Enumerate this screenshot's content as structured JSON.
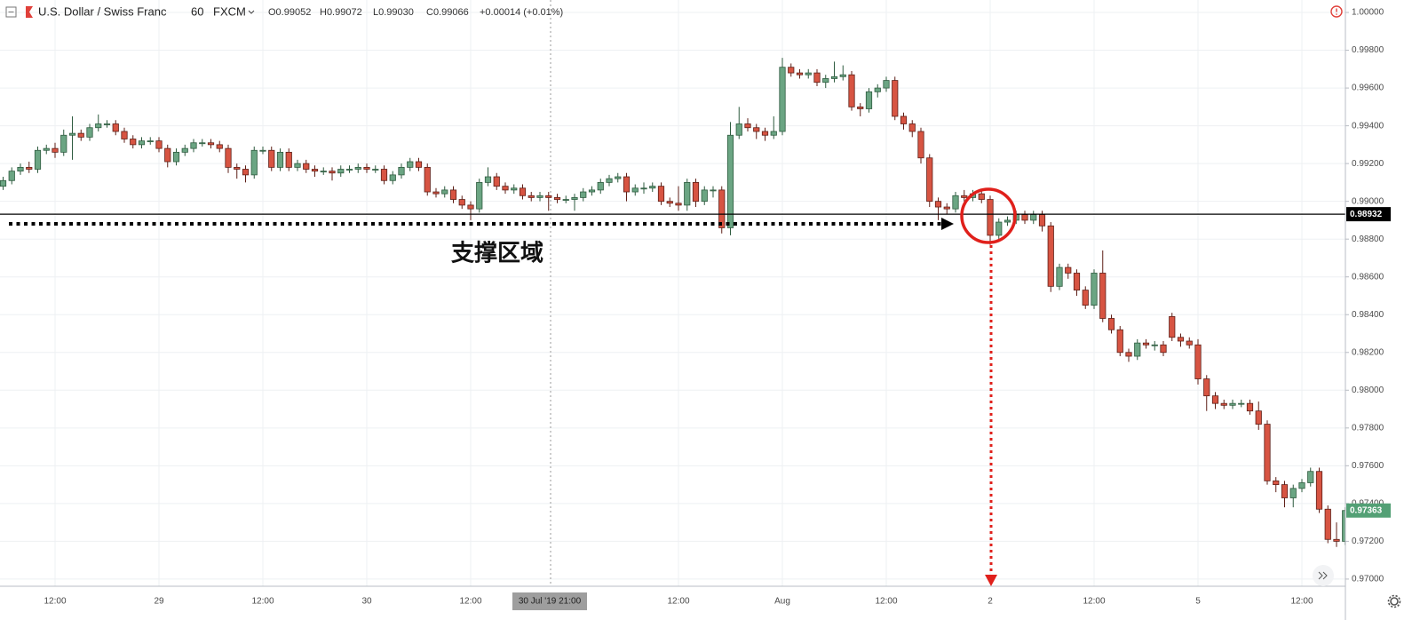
{
  "chart_data": {
    "type": "candlestick",
    "title": "U.S. Dollar / Swiss Franc",
    "interval": "60",
    "source": "FXCM",
    "ohlc_text": [
      "O0.99052",
      "H0.99072",
      "L0.99030",
      "C0.99066"
    ],
    "change_text": "+0.00014 (+0.01%)",
    "crosshair_label": "30 Jul '19  21:00",
    "annotation": "支撑区域",
    "up_color": "#6ba583",
    "down_color": "#d75442",
    "grid": true,
    "ylim": [
      0.96962,
      1.00066
    ],
    "yticks": [
      {
        "value": 1.0,
        "label": "1.00000"
      },
      {
        "value": 0.998,
        "label": "0.99800"
      },
      {
        "value": 0.996,
        "label": "0.99600"
      },
      {
        "value": 0.994,
        "label": "0.99400"
      },
      {
        "value": 0.992,
        "label": "0.99200"
      },
      {
        "value": 0.99,
        "label": "0.99000"
      },
      {
        "value": 0.988,
        "label": "0.98800"
      },
      {
        "value": 0.986,
        "label": "0.98600"
      },
      {
        "value": 0.984,
        "label": "0.98400"
      },
      {
        "value": 0.982,
        "label": "0.98200"
      },
      {
        "value": 0.98,
        "label": "0.98000"
      },
      {
        "value": 0.978,
        "label": "0.97800"
      },
      {
        "value": 0.976,
        "label": "0.97600"
      },
      {
        "value": 0.974,
        "label": "0.97400"
      },
      {
        "value": 0.972,
        "label": "0.97200"
      },
      {
        "value": 0.97,
        "label": "0.97000"
      }
    ],
    "price_lines": [
      {
        "value": 0.98932,
        "color": "#000000",
        "line": true
      },
      {
        "value": 0.97363,
        "color": "#53a075",
        "line": false
      }
    ],
    "categories": [
      null,
      null,
      null,
      null,
      null,
      null,
      "12:00",
      null,
      null,
      null,
      null,
      null,
      null,
      null,
      null,
      null,
      null,
      null,
      "29",
      null,
      null,
      null,
      null,
      null,
      null,
      null,
      null,
      null,
      null,
      null,
      "12:00",
      null,
      null,
      null,
      null,
      null,
      null,
      null,
      null,
      null,
      null,
      null,
      "30",
      null,
      null,
      null,
      null,
      null,
      null,
      null,
      null,
      null,
      null,
      null,
      "12:00",
      null,
      null,
      null,
      null,
      null,
      null,
      null,
      null,
      null,
      null,
      null,
      null,
      null,
      null,
      null,
      null,
      null,
      null,
      null,
      null,
      null,
      null,
      null,
      "12:00",
      null,
      null,
      null,
      null,
      null,
      null,
      null,
      null,
      null,
      null,
      null,
      "Aug",
      null,
      null,
      null,
      null,
      null,
      null,
      null,
      null,
      null,
      null,
      null,
      "12:00",
      null,
      null,
      null,
      null,
      null,
      null,
      null,
      null,
      null,
      null,
      null,
      "2",
      null,
      null,
      null,
      null,
      null,
      null,
      null,
      null,
      null,
      null,
      null,
      "12:00",
      null,
      null,
      null,
      null,
      null,
      null,
      null,
      null,
      null,
      null,
      null,
      "5",
      null,
      null,
      null,
      null,
      null,
      null,
      null,
      null,
      null,
      null,
      null,
      "12:00",
      null,
      null,
      null,
      null,
      null
    ],
    "open": [
      0.9908,
      0.9911,
      0.9916,
      0.9918,
      0.9917,
      0.9927,
      0.9928,
      0.9926,
      0.9935,
      0.9936,
      0.9934,
      0.9939,
      0.9941,
      0.9941,
      0.9937,
      0.9933,
      0.993,
      0.9932,
      0.9932,
      0.9928,
      0.9921,
      0.9926,
      0.9928,
      0.9931,
      0.9931,
      0.993,
      0.9928,
      0.9918,
      0.9917,
      0.9914,
      0.9927,
      0.9927,
      0.9918,
      0.9926,
      0.9918,
      0.992,
      0.9917,
      0.9916,
      0.9916,
      0.9915,
      0.9917,
      0.9917,
      0.9918,
      0.9917,
      0.9917,
      0.9911,
      0.9914,
      0.9918,
      0.9921,
      0.9918,
      0.9905,
      0.9904,
      0.9906,
      0.9901,
      0.9898,
      0.9896,
      0.991,
      0.9913,
      0.9908,
      0.9906,
      0.9907,
      0.9903,
      0.9902,
      0.9903,
      0.9902,
      0.9901,
      0.9901,
      0.9902,
      0.9905,
      0.9906,
      0.991,
      0.9912,
      0.9913,
      0.9905,
      0.9907,
      0.9907,
      0.9908,
      0.99,
      0.9899,
      0.9898,
      0.991,
      0.99,
      0.9906,
      0.9906,
      0.9886,
      0.9935,
      0.9941,
      0.9939,
      0.9937,
      0.9935,
      0.9937,
      0.9971,
      0.9968,
      0.9967,
      0.9968,
      0.9963,
      0.9965,
      0.9966,
      0.9967,
      0.995,
      0.9949,
      0.9958,
      0.996,
      0.9964,
      0.9945,
      0.9941,
      0.9937,
      0.9923,
      0.99,
      0.9897,
      0.9896,
      0.9903,
      0.9902,
      0.9904,
      0.9901,
      0.9882,
      0.9889,
      0.989,
      0.9893,
      0.989,
      0.9893,
      0.9887,
      0.9855,
      0.9865,
      0.9862,
      0.9853,
      0.9845,
      0.9862,
      0.9838,
      0.9832,
      0.982,
      0.9818,
      0.9825,
      0.9824,
      0.9824,
      0.9839,
      0.9828,
      0.9826,
      0.9824,
      0.9806,
      0.9797,
      0.9793,
      0.9792,
      0.9793,
      0.9793,
      0.9789,
      0.9782,
      0.9752,
      0.975,
      0.9743,
      0.9748,
      0.9751,
      0.9757,
      0.9737,
      0.9721,
      0.972
    ],
    "high": [
      0.9913,
      0.9918,
      0.992,
      0.9921,
      0.9929,
      0.993,
      0.9931,
      0.9938,
      0.9945,
      0.9938,
      0.9941,
      0.9946,
      0.9943,
      0.9943,
      0.9939,
      0.9935,
      0.9934,
      0.9934,
      0.9934,
      0.993,
      0.9928,
      0.993,
      0.9933,
      0.9933,
      0.9933,
      0.9932,
      0.993,
      0.992,
      0.9919,
      0.9929,
      0.9929,
      0.9929,
      0.9928,
      0.9928,
      0.9922,
      0.9922,
      0.9919,
      0.9918,
      0.9918,
      0.9919,
      0.9919,
      0.992,
      0.992,
      0.9919,
      0.9919,
      0.9916,
      0.992,
      0.9923,
      0.9923,
      0.992,
      0.9907,
      0.9908,
      0.9908,
      0.9903,
      0.99,
      0.9912,
      0.9918,
      0.9915,
      0.991,
      0.9909,
      0.9909,
      0.9905,
      0.9905,
      0.9905,
      0.9904,
      0.9903,
      0.9904,
      0.9907,
      0.9908,
      0.9912,
      0.9914,
      0.9915,
      0.9915,
      0.9909,
      0.991,
      0.991,
      0.991,
      0.9902,
      0.9908,
      0.9912,
      0.9912,
      0.9908,
      0.9908,
      0.9908,
      0.9942,
      0.995,
      0.9944,
      0.9941,
      0.9939,
      0.9945,
      0.9976,
      0.9973,
      0.997,
      0.997,
      0.997,
      0.9967,
      0.9974,
      0.9972,
      0.9969,
      0.9952,
      0.996,
      0.9962,
      0.9966,
      0.9966,
      0.9947,
      0.9943,
      0.9939,
      0.9925,
      0.9902,
      0.9899,
      0.9905,
      0.9906,
      0.9906,
      0.9906,
      0.9903,
      0.9891,
      0.9892,
      0.9895,
      0.9895,
      0.9895,
      0.9895,
      0.9889,
      0.9867,
      0.9867,
      0.9864,
      0.9855,
      0.9864,
      0.9874,
      0.984,
      0.9834,
      0.9822,
      0.9827,
      0.9827,
      0.9826,
      0.9826,
      0.9841,
      0.983,
      0.9828,
      0.9827,
      0.9808,
      0.9799,
      0.9795,
      0.9795,
      0.9795,
      0.9795,
      0.9794,
      0.9784,
      0.9754,
      0.9752,
      0.975,
      0.9753,
      0.9759,
      0.9759,
      0.9739,
      0.973,
      0.9738
    ],
    "low": [
      0.9906,
      0.9909,
      0.9914,
      0.9915,
      0.9915,
      0.9925,
      0.9923,
      0.9924,
      0.9922,
      0.9932,
      0.9932,
      0.9937,
      0.9939,
      0.9935,
      0.9931,
      0.9928,
      0.9928,
      0.993,
      0.9926,
      0.9918,
      0.9919,
      0.9924,
      0.9926,
      0.9929,
      0.9928,
      0.9926,
      0.9915,
      0.9912,
      0.991,
      0.9912,
      0.9925,
      0.9916,
      0.9916,
      0.9916,
      0.9916,
      0.9915,
      0.9913,
      0.9914,
      0.9911,
      0.9913,
      0.9915,
      0.9915,
      0.9915,
      0.9915,
      0.9909,
      0.9909,
      0.9912,
      0.9916,
      0.9916,
      0.9903,
      0.9902,
      0.9902,
      0.9899,
      0.9896,
      0.989,
      0.9894,
      0.9908,
      0.9906,
      0.9904,
      0.9904,
      0.9901,
      0.99,
      0.99,
      0.9895,
      0.9899,
      0.9899,
      0.9895,
      0.99,
      0.9903,
      0.9904,
      0.9908,
      0.991,
      0.99,
      0.9903,
      0.9904,
      0.9905,
      0.9898,
      0.9897,
      0.9895,
      0.9895,
      0.9897,
      0.9898,
      0.9902,
      0.9883,
      0.9882,
      0.9933,
      0.9937,
      0.9933,
      0.9932,
      0.9933,
      0.9935,
      0.9966,
      0.9965,
      0.9965,
      0.9961,
      0.996,
      0.9963,
      0.9964,
      0.9948,
      0.9945,
      0.9947,
      0.9955,
      0.9958,
      0.9943,
      0.9938,
      0.9934,
      0.992,
      0.9897,
      0.989,
      0.9893,
      0.9894,
      0.99,
      0.99,
      0.9899,
      0.9877,
      0.988,
      0.9887,
      0.9888,
      0.9888,
      0.9888,
      0.9884,
      0.9852,
      0.9853,
      0.9859,
      0.985,
      0.9843,
      0.9843,
      0.9836,
      0.983,
      0.9818,
      0.9815,
      0.9816,
      0.9822,
      0.9821,
      0.9818,
      0.9826,
      0.9823,
      0.9822,
      0.9803,
      0.9789,
      0.979,
      0.979,
      0.979,
      0.9791,
      0.9787,
      0.9779,
      0.975,
      0.9746,
      0.9738,
      0.9738,
      0.9746,
      0.9749,
      0.9735,
      0.9719,
      0.9717,
      0.9718
    ],
    "close": [
      0.9911,
      0.9916,
      0.9918,
      0.9917,
      0.9927,
      0.9928,
      0.9926,
      0.9935,
      0.9936,
      0.9934,
      0.9939,
      0.9941,
      0.9941,
      0.9937,
      0.9933,
      0.993,
      0.9932,
      0.9932,
      0.9928,
      0.9921,
      0.9926,
      0.9928,
      0.9931,
      0.9931,
      0.993,
      0.9928,
      0.9918,
      0.9917,
      0.9914,
      0.9927,
      0.9927,
      0.9918,
      0.9926,
      0.9918,
      0.992,
      0.9917,
      0.9916,
      0.9916,
      0.9915,
      0.9917,
      0.9917,
      0.9918,
      0.9917,
      0.9917,
      0.9911,
      0.9914,
      0.9918,
      0.9921,
      0.9918,
      0.9905,
      0.9904,
      0.9906,
      0.9901,
      0.9898,
      0.9896,
      0.991,
      0.9913,
      0.9908,
      0.9906,
      0.9907,
      0.9903,
      0.9902,
      0.9903,
      0.9902,
      0.9901,
      0.9901,
      0.9902,
      0.9905,
      0.9906,
      0.991,
      0.9912,
      0.9913,
      0.9905,
      0.9907,
      0.9907,
      0.9908,
      0.99,
      0.9899,
      0.9898,
      0.991,
      0.99,
      0.9906,
      0.9906,
      0.9886,
      0.9935,
      0.9941,
      0.9939,
      0.9937,
      0.9935,
      0.9937,
      0.9971,
      0.9968,
      0.9967,
      0.9968,
      0.9963,
      0.9965,
      0.9966,
      0.9967,
      0.995,
      0.9949,
      0.9958,
      0.996,
      0.9964,
      0.9945,
      0.9941,
      0.9937,
      0.9923,
      0.99,
      0.9897,
      0.9896,
      0.9903,
      0.9902,
      0.9904,
      0.9901,
      0.9882,
      0.9889,
      0.989,
      0.9893,
      0.989,
      0.9893,
      0.9887,
      0.9855,
      0.9865,
      0.9862,
      0.9853,
      0.9845,
      0.9862,
      0.9838,
      0.9832,
      0.982,
      0.9818,
      0.9825,
      0.9824,
      0.9824,
      0.982,
      0.9828,
      0.9826,
      0.9824,
      0.9806,
      0.9797,
      0.9793,
      0.9792,
      0.9793,
      0.9793,
      0.9789,
      0.9782,
      0.9752,
      0.975,
      0.9743,
      0.9748,
      0.9751,
      0.9757,
      0.9737,
      0.9721,
      0.972,
      0.97363
    ]
  }
}
